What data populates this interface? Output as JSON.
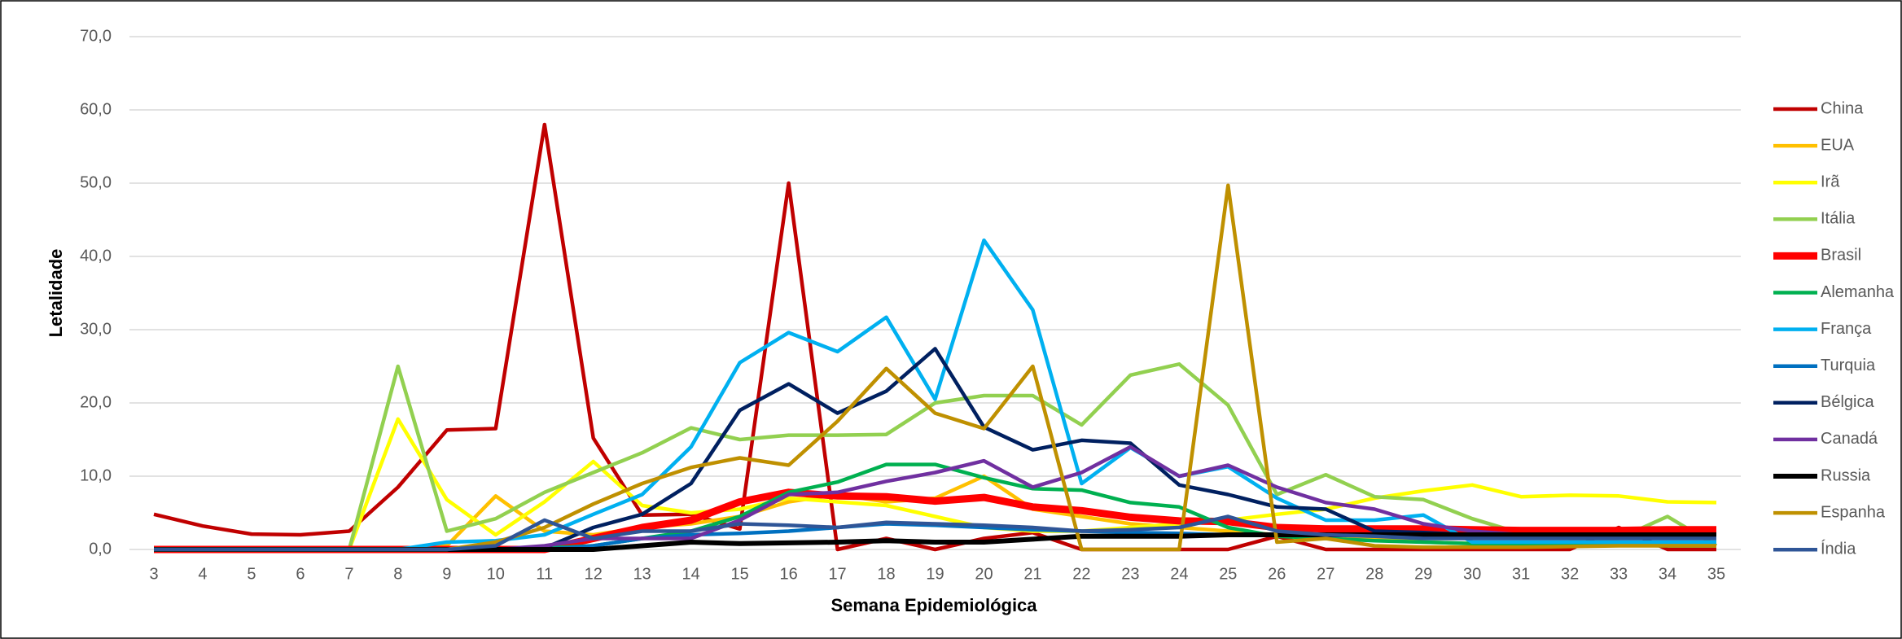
{
  "chart_data": {
    "type": "line",
    "x_label": "Semana Epidemiológica",
    "y_label": "Letalidade",
    "categories": [
      3,
      4,
      5,
      6,
      7,
      8,
      9,
      10,
      11,
      12,
      13,
      14,
      15,
      16,
      17,
      18,
      19,
      20,
      21,
      22,
      23,
      24,
      25,
      26,
      27,
      28,
      29,
      30,
      31,
      32,
      33,
      34,
      35
    ],
    "ylim": [
      0,
      70
    ],
    "yticks": [
      {
        "value": 0,
        "label": "0,0"
      },
      {
        "value": 10,
        "label": "10,0"
      },
      {
        "value": 20,
        "label": "20,0"
      },
      {
        "value": 30,
        "label": "30,0"
      },
      {
        "value": 40,
        "label": "40,0"
      },
      {
        "value": 50,
        "label": "50,0"
      },
      {
        "value": 60,
        "label": "60,0"
      },
      {
        "value": 70,
        "label": "70,0"
      }
    ],
    "grid": true,
    "legend": "right",
    "series": [
      {
        "name": "China",
        "color": "#c00000",
        "line_width": 4.5,
        "values": [
          4.8,
          3.2,
          2.1,
          2.0,
          2.5,
          8.5,
          16.3,
          16.5,
          58.0,
          15.2,
          4.7,
          4.8,
          2.8,
          50.0,
          0,
          1.5,
          0,
          1.5,
          2.3,
          0,
          0,
          0,
          0,
          1.8,
          0,
          0,
          0,
          0,
          0,
          0,
          3.0,
          0,
          0
        ]
      },
      {
        "name": "EUA",
        "color": "#ffc000",
        "line_width": 4.5,
        "values": [
          0,
          0,
          0,
          0,
          0,
          0,
          0.5,
          7.3,
          2.5,
          2.0,
          3.0,
          3.5,
          4.5,
          6.5,
          7.5,
          6.5,
          7.0,
          10.0,
          5.5,
          4.5,
          3.5,
          3.0,
          2.5,
          2.0,
          1.8,
          1.5,
          1.0,
          0.8,
          0.8,
          0.7,
          0.7,
          0.6,
          0.6
        ]
      },
      {
        "name": "Irã",
        "color": "#ffff00",
        "line_width": 4.5,
        "values": [
          0,
          0,
          0,
          0,
          0,
          17.8,
          6.8,
          2.0,
          6.5,
          12.0,
          6.0,
          5.0,
          5.5,
          7.0,
          6.5,
          6.0,
          4.5,
          3.0,
          2.5,
          2.5,
          3.0,
          3.5,
          4.0,
          4.8,
          5.5,
          7.0,
          8.0,
          8.8,
          7.2,
          7.4,
          7.3,
          6.5,
          6.4
        ]
      },
      {
        "name": "Itália",
        "color": "#92d050",
        "line_width": 4.5,
        "values": [
          0,
          0,
          0,
          0,
          0,
          25.0,
          2.5,
          4.2,
          7.8,
          10.5,
          13.2,
          16.6,
          15.0,
          15.6,
          15.6,
          15.7,
          20.0,
          21.0,
          21.0,
          17.0,
          23.8,
          25.3,
          19.7,
          7.5,
          10.2,
          7.2,
          6.8,
          4.2,
          2.2,
          1.5,
          1.5,
          4.5,
          0.5
        ]
      },
      {
        "name": "Brasil",
        "color": "#ff0000",
        "line_width": 9,
        "values": [
          0,
          0,
          0,
          0,
          0,
          0,
          0,
          0,
          0,
          1.5,
          3.0,
          4.0,
          6.5,
          7.8,
          7.3,
          7.2,
          6.6,
          7.1,
          5.8,
          5.3,
          4.4,
          3.9,
          3.8,
          3.0,
          2.8,
          2.8,
          2.8,
          2.7,
          2.6,
          2.6,
          2.6,
          2.7,
          2.7
        ]
      },
      {
        "name": "Alemanha",
        "color": "#00b050",
        "line_width": 4.5,
        "values": [
          0,
          0,
          0,
          0,
          0,
          0,
          0,
          0,
          0.2,
          0.5,
          1.5,
          2.5,
          4.5,
          7.8,
          9.2,
          11.6,
          11.6,
          9.8,
          8.3,
          8.1,
          6.4,
          5.8,
          3.0,
          1.8,
          1.5,
          1.2,
          1.0,
          0.8,
          0.7,
          0.6,
          0.6,
          0.5,
          0.5
        ]
      },
      {
        "name": "França",
        "color": "#00b0f0",
        "line_width": 4.5,
        "values": [
          0,
          0,
          0,
          0,
          0,
          0,
          1.0,
          1.2,
          2.0,
          4.8,
          7.5,
          14.0,
          25.5,
          29.6,
          27.0,
          31.7,
          20.5,
          42.2,
          32.7,
          9.0,
          13.9,
          10.0,
          11.3,
          7.0,
          4.0,
          4.0,
          4.7,
          1.0,
          1.0,
          1.0,
          1.0,
          1.0,
          1.0
        ]
      },
      {
        "name": "Turquia",
        "color": "#0070c0",
        "line_width": 4.5,
        "values": [
          0,
          0,
          0,
          0,
          0,
          0,
          0,
          0,
          0,
          0.5,
          1.5,
          2.0,
          2.2,
          2.5,
          3.0,
          3.5,
          3.3,
          3.0,
          2.7,
          2.5,
          2.3,
          2.2,
          2.0,
          2.0,
          2.0,
          2.0,
          2.0,
          1.8,
          1.8,
          1.8,
          1.8,
          1.8,
          1.8
        ]
      },
      {
        "name": "Bélgica",
        "color": "#002060",
        "line_width": 4.5,
        "values": [
          0,
          0,
          0,
          0,
          0,
          0,
          0,
          0,
          0.2,
          3.0,
          4.8,
          9.0,
          19.0,
          22.6,
          18.6,
          21.6,
          27.4,
          16.7,
          13.6,
          14.9,
          14.5,
          8.8,
          7.5,
          5.8,
          5.5,
          2.5,
          2.3,
          2.0,
          2.0,
          2.0,
          2.0,
          2.0,
          2.0
        ]
      },
      {
        "name": "Canadá",
        "color": "#7030a0",
        "line_width": 4.5,
        "values": [
          0,
          0,
          0,
          0,
          0,
          0,
          0,
          0,
          0.5,
          1.5,
          1.5,
          1.5,
          4.0,
          7.5,
          7.8,
          9.3,
          10.5,
          12.1,
          8.5,
          10.5,
          14.0,
          10.0,
          11.5,
          8.5,
          6.4,
          5.5,
          3.5,
          2.5,
          2.0,
          2.0,
          2.0,
          2.0,
          2.0
        ]
      },
      {
        "name": "Russia",
        "color": "#000000",
        "line_width": 6,
        "values": [
          0,
          0,
          0,
          0,
          0,
          0,
          0,
          0,
          0,
          0,
          0.5,
          1.0,
          0.8,
          0.9,
          1.0,
          1.2,
          1.0,
          1.0,
          1.4,
          1.8,
          1.8,
          1.8,
          2.0,
          2.0,
          2.0,
          2.0,
          2.0,
          2.0,
          2.0,
          2.0,
          2.0,
          2.0,
          2.0
        ]
      },
      {
        "name": "Espanha",
        "color": "#bf9000",
        "line_width": 4.5,
        "values": [
          0,
          0,
          0,
          0,
          0,
          0,
          0,
          1.0,
          3.0,
          6.2,
          9.0,
          11.2,
          12.5,
          11.5,
          17.5,
          24.7,
          18.6,
          16.5,
          25.0,
          0,
          0,
          0,
          49.7,
          1.0,
          1.5,
          0.5,
          0.3,
          0.3,
          0.3,
          0.4,
          0.5,
          0.5,
          0.5
        ]
      },
      {
        "name": "Índia",
        "color": "#2f5597",
        "line_width": 4.5,
        "values": [
          0,
          0,
          0,
          0,
          0,
          0,
          0,
          0.5,
          4.0,
          1.5,
          2.5,
          2.5,
          3.5,
          3.3,
          3.0,
          3.7,
          3.5,
          3.3,
          3.0,
          2.5,
          2.7,
          3.0,
          4.5,
          2.5,
          2.0,
          1.8,
          1.5,
          1.5,
          1.5,
          1.5,
          1.5,
          1.5,
          1.5
        ]
      }
    ]
  }
}
